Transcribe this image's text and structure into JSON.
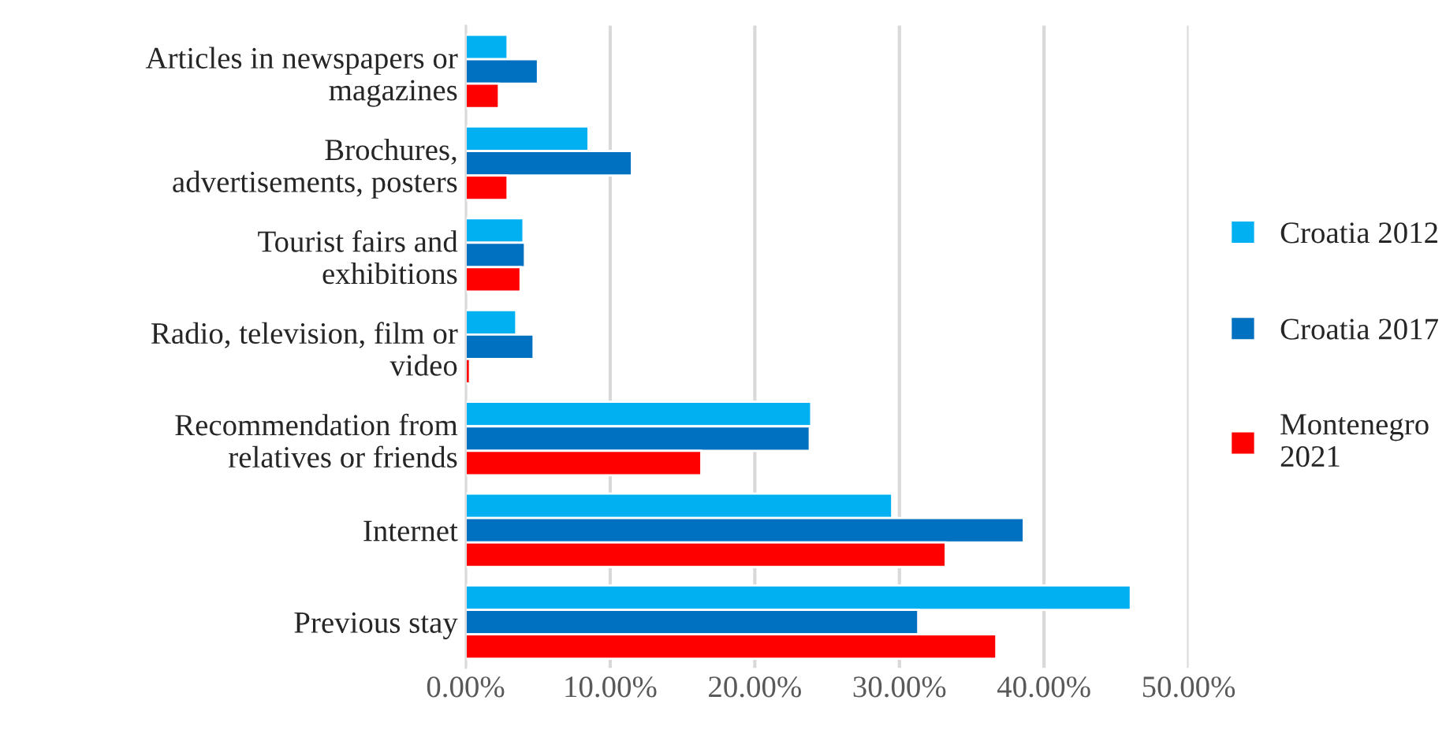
{
  "chart_data": {
    "type": "bar",
    "orientation": "horizontal",
    "categories": [
      "Articles in newspapers or\nmagazines",
      "Brochures,\nadvertisements, posters",
      "Tourist fairs and\nexhibitions",
      "Radio, television, film or\nvideo",
      "Recommendation from\nrelatives or friends",
      "Internet",
      "Previous stay"
    ],
    "series": [
      {
        "name": "Croatia 2012",
        "color": "#00b0f0",
        "values": [
          2.9,
          8.5,
          4.0,
          3.5,
          23.9,
          29.5,
          46.0
        ]
      },
      {
        "name": "Croatia 2017",
        "color": "#0070c0",
        "values": [
          5.0,
          11.5,
          4.1,
          4.7,
          23.8,
          38.6,
          31.3
        ]
      },
      {
        "name": "Montenegro\n2021",
        "color": "#ff0000",
        "values": [
          2.3,
          2.9,
          3.8,
          0.3,
          16.3,
          33.2,
          36.7
        ]
      }
    ],
    "xlim": [
      0,
      50
    ],
    "xticks": [
      {
        "value": 0,
        "label": "0.00%"
      },
      {
        "value": 10,
        "label": "10.00%"
      },
      {
        "value": 20,
        "label": "20.00%"
      },
      {
        "value": 30,
        "label": "30.00%"
      },
      {
        "value": 40,
        "label": "40.00%"
      },
      {
        "value": 50,
        "label": "50.00%"
      }
    ],
    "grid": "x",
    "legend": "right"
  }
}
